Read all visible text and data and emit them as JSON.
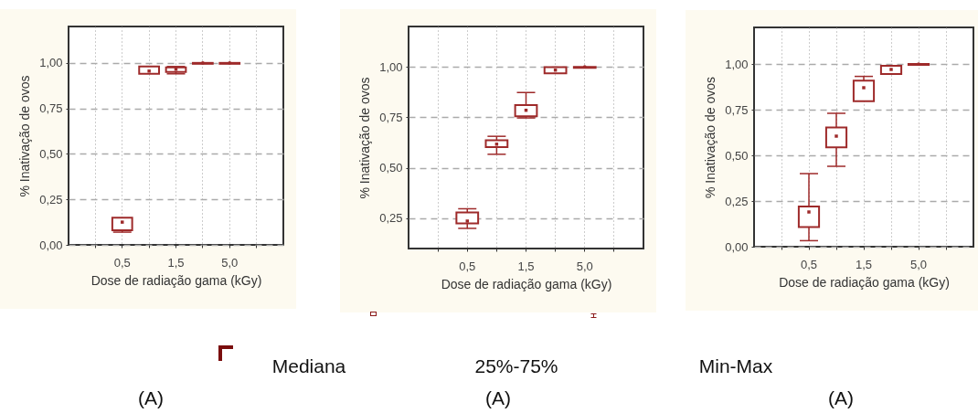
{
  "chart_data": [
    {
      "type": "box",
      "xlabel": "Dose de radiação gama (kGy)",
      "ylabel": "% Inativação de ovos",
      "categories": [
        "0,5",
        null,
        "1,5",
        null,
        "5,0"
      ],
      "grid": true,
      "ylim": [
        0,
        1.2
      ],
      "yticks": [
        {
          "value": 0,
          "label": "0,00"
        },
        {
          "value": 0.25,
          "label": "0,25"
        },
        {
          "value": 0.5,
          "label": "0,50"
        },
        {
          "value": 0.75,
          "label": "0,75"
        },
        {
          "value": 1,
          "label": "1,00"
        }
      ],
      "series": [
        {
          "color": "#9e2a2a",
          "boxes": [
            {
              "low": 0.07,
              "q1": 0.08,
              "median": 0.125,
              "q3": 0.15,
              "high": 0.15
            },
            {
              "low": 0.94,
              "q1": 0.94,
              "median": 0.955,
              "q3": 0.98,
              "high": 0.98
            },
            {
              "low": 0.94,
              "q1": 0.95,
              "median": 0.965,
              "q3": 0.975,
              "high": 0.98
            },
            {
              "low": 0.995,
              "q1": 0.995,
              "median": 1,
              "q3": 1,
              "high": 1
            },
            {
              "low": 0.995,
              "q1": 0.995,
              "median": 1,
              "q3": 1,
              "high": 1
            }
          ]
        }
      ],
      "annotations": [
        "(A)"
      ]
    },
    {
      "type": "box",
      "xlabel": "Dose de radiação gama (kGy)",
      "ylabel": "% Inativação de ovos",
      "categories": [
        "0,5",
        null,
        "1,5",
        null,
        "5,0"
      ],
      "grid": true,
      "ylim": [
        0.1,
        1.2
      ],
      "yticks": [
        {
          "value": 0.25,
          "label": "0,25"
        },
        {
          "value": 0.5,
          "label": "0,50"
        },
        {
          "value": 0.75,
          "label": "0,75"
        },
        {
          "value": 1,
          "label": "1,00"
        }
      ],
      "series": [
        {
          "color": "#9e2a2a",
          "boxes": [
            {
              "low": 0.2,
              "q1": 0.224,
              "median": 0.236,
              "q3": 0.279,
              "high": 0.297
            },
            {
              "low": 0.567,
              "q1": 0.602,
              "median": 0.617,
              "q3": 0.636,
              "high": 0.656
            },
            {
              "low": 0.747,
              "q1": 0.755,
              "median": 0.785,
              "q3": 0.811,
              "high": 0.873
            },
            {
              "low": 0.968,
              "q1": 0.968,
              "median": 0.984,
              "q3": 0.999,
              "high": 0.999
            },
            {
              "low": 0.995,
              "q1": 0.995,
              "median": 1,
              "q3": 1,
              "high": 1
            }
          ]
        }
      ],
      "annotations": [
        "Mediana",
        "25%-75%",
        "Min-Max",
        "(A)"
      ]
    },
    {
      "type": "box",
      "xlabel": "Dose de radiação gama (kGy)",
      "ylabel": "% Inativação de ovos",
      "categories": [
        "0,5",
        null,
        "1,5",
        null,
        "5,0"
      ],
      "grid": true,
      "ylim": [
        0,
        1.2
      ],
      "yticks": [
        {
          "value": 0,
          "label": "0,00"
        },
        {
          "value": 0.25,
          "label": "0,25"
        },
        {
          "value": 0.5,
          "label": "0,50"
        },
        {
          "value": 0.75,
          "label": "0,75"
        },
        {
          "value": 1,
          "label": "1,00"
        }
      ],
      "series": [
        {
          "color": "#9e2a2a",
          "boxes": [
            {
              "low": 0.033,
              "q1": 0.108,
              "median": 0.19,
              "q3": 0.22,
              "high": 0.4
            },
            {
              "low": 0.44,
              "q1": 0.544,
              "median": 0.605,
              "q3": 0.652,
              "high": 0.73
            },
            {
              "low": 0.796,
              "q1": 0.796,
              "median": 0.87,
              "q3": 0.909,
              "high": 0.932
            },
            {
              "low": 0.945,
              "q1": 0.945,
              "median": 0.97,
              "q3": 0.99,
              "high": 0.99
            },
            {
              "low": 0.995,
              "q1": 0.995,
              "median": 1,
              "q3": 1,
              "high": 1
            }
          ]
        }
      ],
      "annotations": [
        "(A)"
      ]
    }
  ]
}
